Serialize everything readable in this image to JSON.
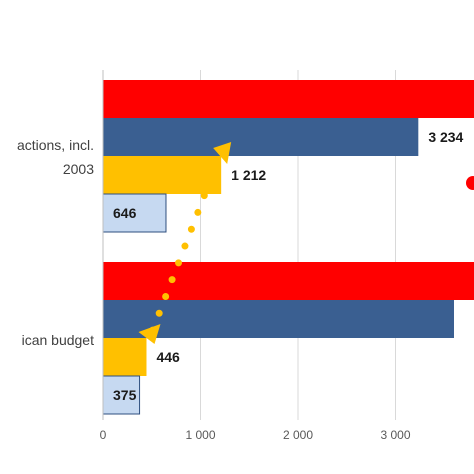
{
  "chart_data": {
    "type": "bar",
    "orientation": "horizontal",
    "categories": [
      "actions, incl. 2003",
      "ican budget"
    ],
    "category_lines": [
      [
        "actions, incl.",
        "2003"
      ],
      [
        "ican budget"
      ]
    ],
    "series": [
      {
        "values": [
          4000,
          4000
        ],
        "color": "#ff0000",
        "label": ""
      },
      {
        "values": [
          3234,
          3600
        ],
        "color": "#3a5f91",
        "label": "3 234"
      },
      {
        "values": [
          1212,
          446
        ],
        "color": "#ffc000",
        "label": ""
      },
      {
        "values": [
          646,
          375
        ],
        "color": "#c6d9f1",
        "label": ""
      }
    ],
    "data_labels": [
      [
        "",
        "3 234",
        "1 212",
        "646"
      ],
      [
        "",
        "",
        "446",
        "375"
      ]
    ],
    "xticks": [
      0,
      1000,
      2000,
      3000
    ],
    "xtick_labels": [
      "0",
      "1 000",
      "2 000",
      "3 000"
    ],
    "xlim": [
      0,
      3800
    ],
    "grid": true,
    "connector": {
      "style": "dotted",
      "color": "#ffc000"
    },
    "title": "",
    "xlabel": "",
    "ylabel": ""
  }
}
